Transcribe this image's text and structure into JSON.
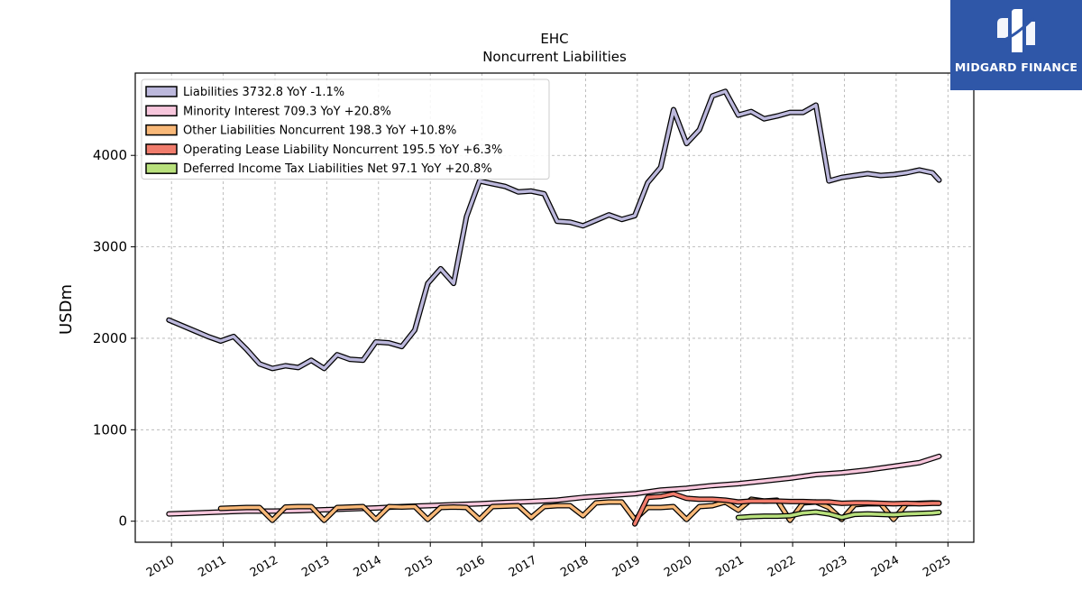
{
  "chart_data": {
    "type": "line",
    "title": "EHC",
    "subtitle": "Noncurrent  Liabilities",
    "ylabel": "USDm",
    "xlabel": "",
    "xlim": [
      2009.3,
      2025.5
    ],
    "ylim": [
      -230,
      4900
    ],
    "grid": true,
    "legend_position": "top-left",
    "x_ticks": [
      "2010",
      "2011",
      "2012",
      "2013",
      "2014",
      "2015",
      "2016",
      "2017",
      "2018",
      "2019",
      "2020",
      "2021",
      "2022",
      "2023",
      "2024",
      "2025"
    ],
    "y_ticks": [
      "0",
      "1000",
      "2000",
      "3000",
      "4000"
    ],
    "series": [
      {
        "name": "Liabilities",
        "legend": "Liabilities  3732.8 YoY -1.1%",
        "color": "#bcb8dc",
        "x": [
          2009.95,
          2010.2,
          2010.45,
          2010.7,
          2010.95,
          2011.2,
          2011.45,
          2011.7,
          2011.95,
          2012.2,
          2012.45,
          2012.7,
          2012.95,
          2013.2,
          2013.45,
          2013.7,
          2013.95,
          2014.2,
          2014.45,
          2014.7,
          2014.95,
          2015.2,
          2015.45,
          2015.7,
          2015.95,
          2016.2,
          2016.45,
          2016.7,
          2016.95,
          2017.2,
          2017.45,
          2017.7,
          2017.95,
          2018.2,
          2018.45,
          2018.7,
          2018.95,
          2019.2,
          2019.45,
          2019.7,
          2019.95,
          2020.2,
          2020.45,
          2020.7,
          2020.95,
          2021.2,
          2021.45,
          2021.7,
          2021.95,
          2022.2,
          2022.45,
          2022.7,
          2022.95,
          2023.2,
          2023.45,
          2023.7,
          2023.95,
          2024.2,
          2024.45,
          2024.7,
          2024.83
        ],
        "y": [
          2200,
          2140,
          2080,
          2020,
          1970,
          2020,
          1880,
          1720,
          1670,
          1700,
          1680,
          1760,
          1670,
          1820,
          1770,
          1760,
          1960,
          1950,
          1910,
          2090,
          2600,
          2760,
          2600,
          3330,
          3720,
          3690,
          3660,
          3600,
          3610,
          3580,
          3280,
          3270,
          3230,
          3290,
          3350,
          3300,
          3340,
          3700,
          3870,
          4500,
          4130,
          4280,
          4650,
          4700,
          4440,
          4480,
          4400,
          4430,
          4470,
          4470,
          4550,
          3720,
          3760,
          3780,
          3800,
          3780,
          3790,
          3810,
          3840,
          3810,
          3730
        ]
      },
      {
        "name": "Minority Interest",
        "legend": "Minority Interest  709.3 YoY +20.8%",
        "color": "#f7c6dc",
        "x": [
          2009.95,
          2010.45,
          2010.95,
          2011.45,
          2011.95,
          2012.45,
          2012.95,
          2013.45,
          2013.95,
          2014.45,
          2014.95,
          2015.45,
          2015.95,
          2016.45,
          2016.95,
          2017.45,
          2017.95,
          2018.45,
          2018.95,
          2019.45,
          2019.95,
          2020.45,
          2020.95,
          2021.45,
          2021.95,
          2022.45,
          2022.95,
          2023.45,
          2023.95,
          2024.45,
          2024.83
        ],
        "y": [
          80,
          90,
          100,
          110,
          110,
          115,
          125,
          135,
          145,
          160,
          170,
          180,
          190,
          205,
          215,
          230,
          260,
          280,
          300,
          340,
          360,
          390,
          410,
          440,
          470,
          510,
          530,
          560,
          600,
          640,
          709
        ]
      },
      {
        "name": "Other Liabilities Noncurrent",
        "legend": "Other Liabilities Noncurrent  198.3 YoY +10.8%",
        "color": "#f8b878",
        "x": [
          2010.95,
          2011.2,
          2011.45,
          2011.7,
          2011.95,
          2012.2,
          2012.45,
          2012.7,
          2012.95,
          2013.2,
          2013.45,
          2013.7,
          2013.95,
          2014.2,
          2014.45,
          2014.7,
          2014.95,
          2015.2,
          2015.45,
          2015.7,
          2015.95,
          2016.2,
          2016.45,
          2016.7,
          2016.95,
          2017.2,
          2017.45,
          2017.7,
          2017.95,
          2018.2,
          2018.45,
          2018.7,
          2018.95,
          2019.2,
          2019.45,
          2019.7,
          2019.95,
          2020.2,
          2020.45,
          2020.7,
          2020.95,
          2021.2,
          2021.45,
          2021.7,
          2021.95,
          2022.2,
          2022.45,
          2022.7,
          2022.95,
          2023.2,
          2023.45,
          2023.7,
          2023.95,
          2024.2,
          2024.45,
          2024.7,
          2024.83
        ],
        "y": [
          140,
          145,
          150,
          150,
          10,
          155,
          160,
          160,
          10,
          150,
          155,
          160,
          20,
          160,
          155,
          160,
          20,
          150,
          155,
          150,
          20,
          160,
          165,
          170,
          40,
          160,
          170,
          170,
          60,
          200,
          210,
          210,
          20,
          150,
          150,
          160,
          20,
          160,
          170,
          210,
          120,
          240,
          220,
          230,
          10,
          200,
          210,
          150,
          20,
          180,
          190,
          190,
          20,
          190,
          195,
          200,
          198
        ]
      },
      {
        "name": "Operating Lease Liability Noncurrent",
        "legend": "Operating Lease Liability Noncurrent  195.5 YoY +6.3%",
        "color": "#f07c6c",
        "x": [
          2018.95,
          2019.2,
          2019.45,
          2019.7,
          2019.95,
          2020.2,
          2020.45,
          2020.7,
          2020.95,
          2021.2,
          2021.45,
          2021.7,
          2021.95,
          2022.2,
          2022.45,
          2022.7,
          2022.95,
          2023.2,
          2023.45,
          2023.7,
          2023.95,
          2024.2,
          2024.45,
          2024.7,
          2024.83
        ],
        "y": [
          -30,
          260,
          270,
          300,
          250,
          240,
          240,
          230,
          210,
          220,
          220,
          220,
          215,
          215,
          210,
          210,
          195,
          200,
          200,
          195,
          190,
          195,
          190,
          195,
          195
        ]
      },
      {
        "name": "Deferred Income Tax Liabilities Net",
        "legend": "Deferred Income Tax Liabilities Net  97.1 YoY +20.8%",
        "color": "#b8e07c",
        "x": [
          2020.95,
          2021.2,
          2021.45,
          2021.7,
          2021.95,
          2022.2,
          2022.45,
          2022.7,
          2022.95,
          2023.2,
          2023.45,
          2023.7,
          2023.95,
          2024.2,
          2024.45,
          2024.7,
          2024.83
        ],
        "y": [
          40,
          50,
          55,
          55,
          60,
          90,
          100,
          80,
          40,
          75,
          80,
          75,
          70,
          80,
          85,
          90,
          97
        ]
      }
    ]
  },
  "logo": {
    "name": "MIDGARD FINANCE"
  }
}
